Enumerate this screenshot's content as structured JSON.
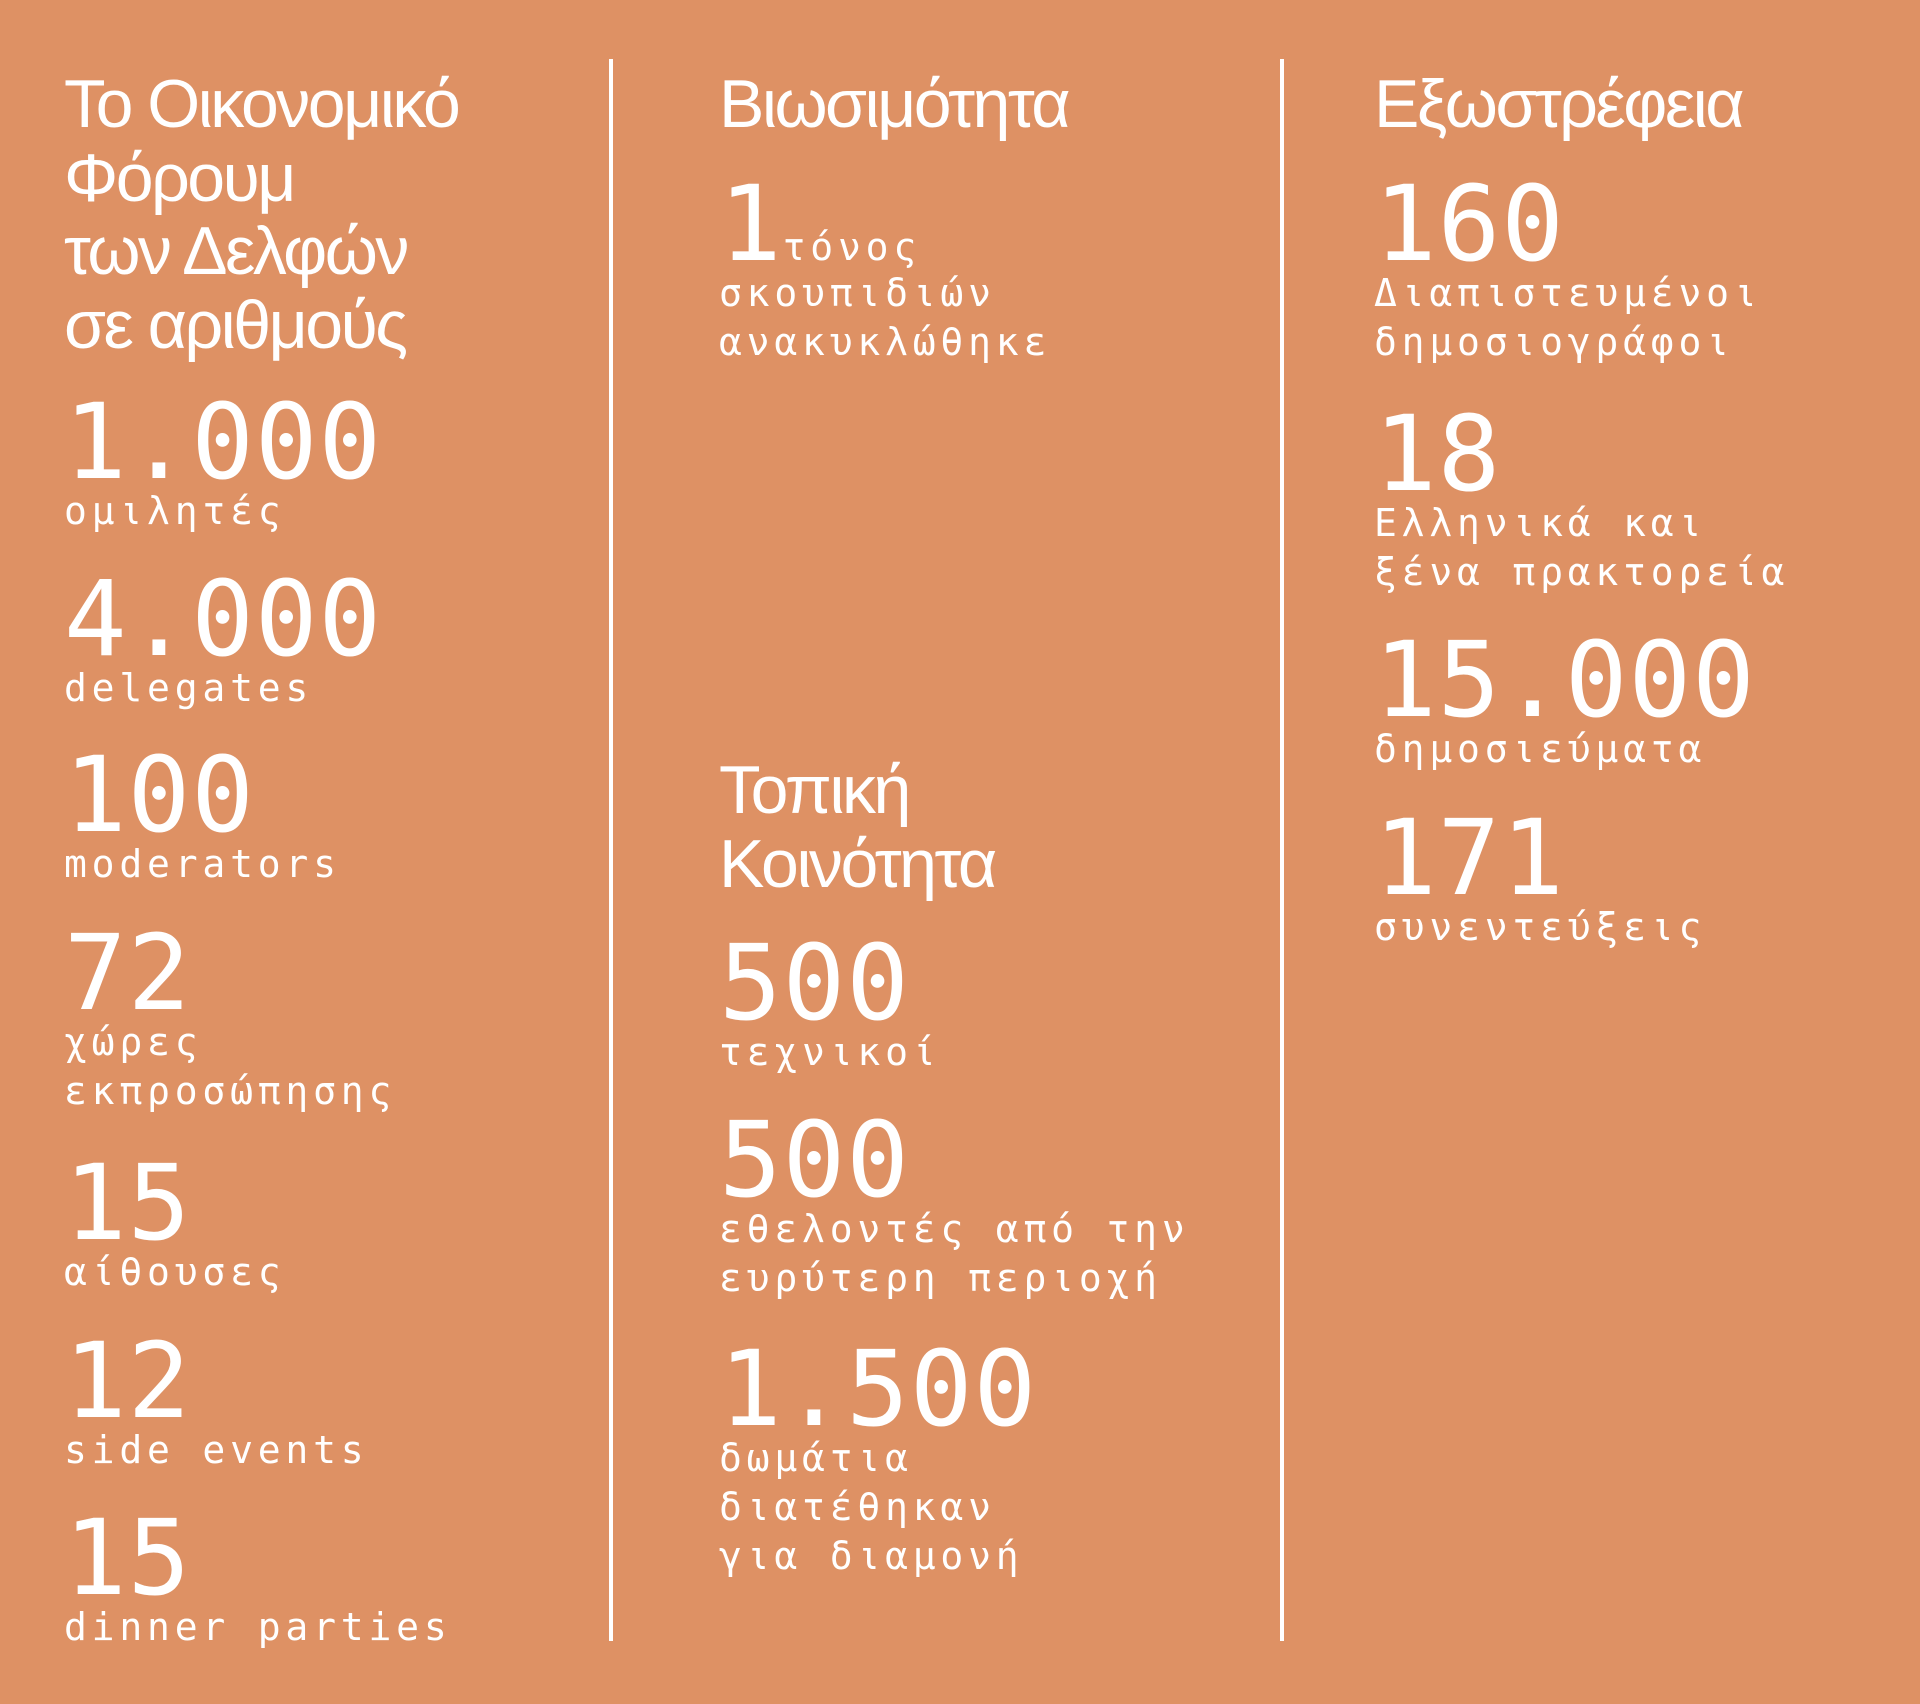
{
  "colors": {
    "background": "#DE9164",
    "text": "#FFFFFF",
    "divider": "#FFFFFF"
  },
  "forum": {
    "heading": [
      "Το Οικονομικό",
      "Φόρουμ",
      "των Δελφών",
      "σε αριθμούς"
    ],
    "stats": [
      {
        "value": "1.000",
        "label": [
          "ομιλητές"
        ]
      },
      {
        "value": "4.000",
        "label": [
          "delegates"
        ]
      },
      {
        "value": "100",
        "label": [
          "moderators"
        ]
      },
      {
        "value": "72",
        "label": [
          "χώρες",
          "εκπροσώπησης"
        ]
      },
      {
        "value": "15",
        "label": [
          "αίθουσες"
        ]
      },
      {
        "value": "12",
        "label": [
          "side events"
        ]
      },
      {
        "value": "15",
        "label": [
          "dinner parties"
        ]
      }
    ]
  },
  "sustainability": {
    "heading": [
      "Βιωσιμότητα"
    ],
    "stats": [
      {
        "value": "1",
        "unit": "τόνος",
        "label": [
          "σκουπιδιών",
          "ανακυκλώθηκε"
        ]
      }
    ]
  },
  "local_community": {
    "heading": [
      "Τοπική",
      "Κοινότητα"
    ],
    "stats": [
      {
        "value": "500",
        "label": [
          "τεχνικοί"
        ]
      },
      {
        "value": "500",
        "label": [
          "εθελοντές από την",
          "ευρύτερη περιοχή"
        ]
      },
      {
        "value": "1.500",
        "label": [
          "δωμάτια",
          "διατέθηκαν",
          "για διαμονή"
        ]
      }
    ]
  },
  "outreach": {
    "heading": [
      "Εξωστρέφεια"
    ],
    "stats": [
      {
        "value": "160",
        "label": [
          "Διαπιστευμένοι",
          "δημοσιογράφοι"
        ]
      },
      {
        "value": "18",
        "label": [
          "Ελληνικά και",
          "ξένα πρακτορεία"
        ]
      },
      {
        "value": "15.000",
        "label": [
          "δημοσιεύματα"
        ]
      },
      {
        "value": "171",
        "label": [
          "συνεντεύξεις"
        ]
      }
    ]
  }
}
